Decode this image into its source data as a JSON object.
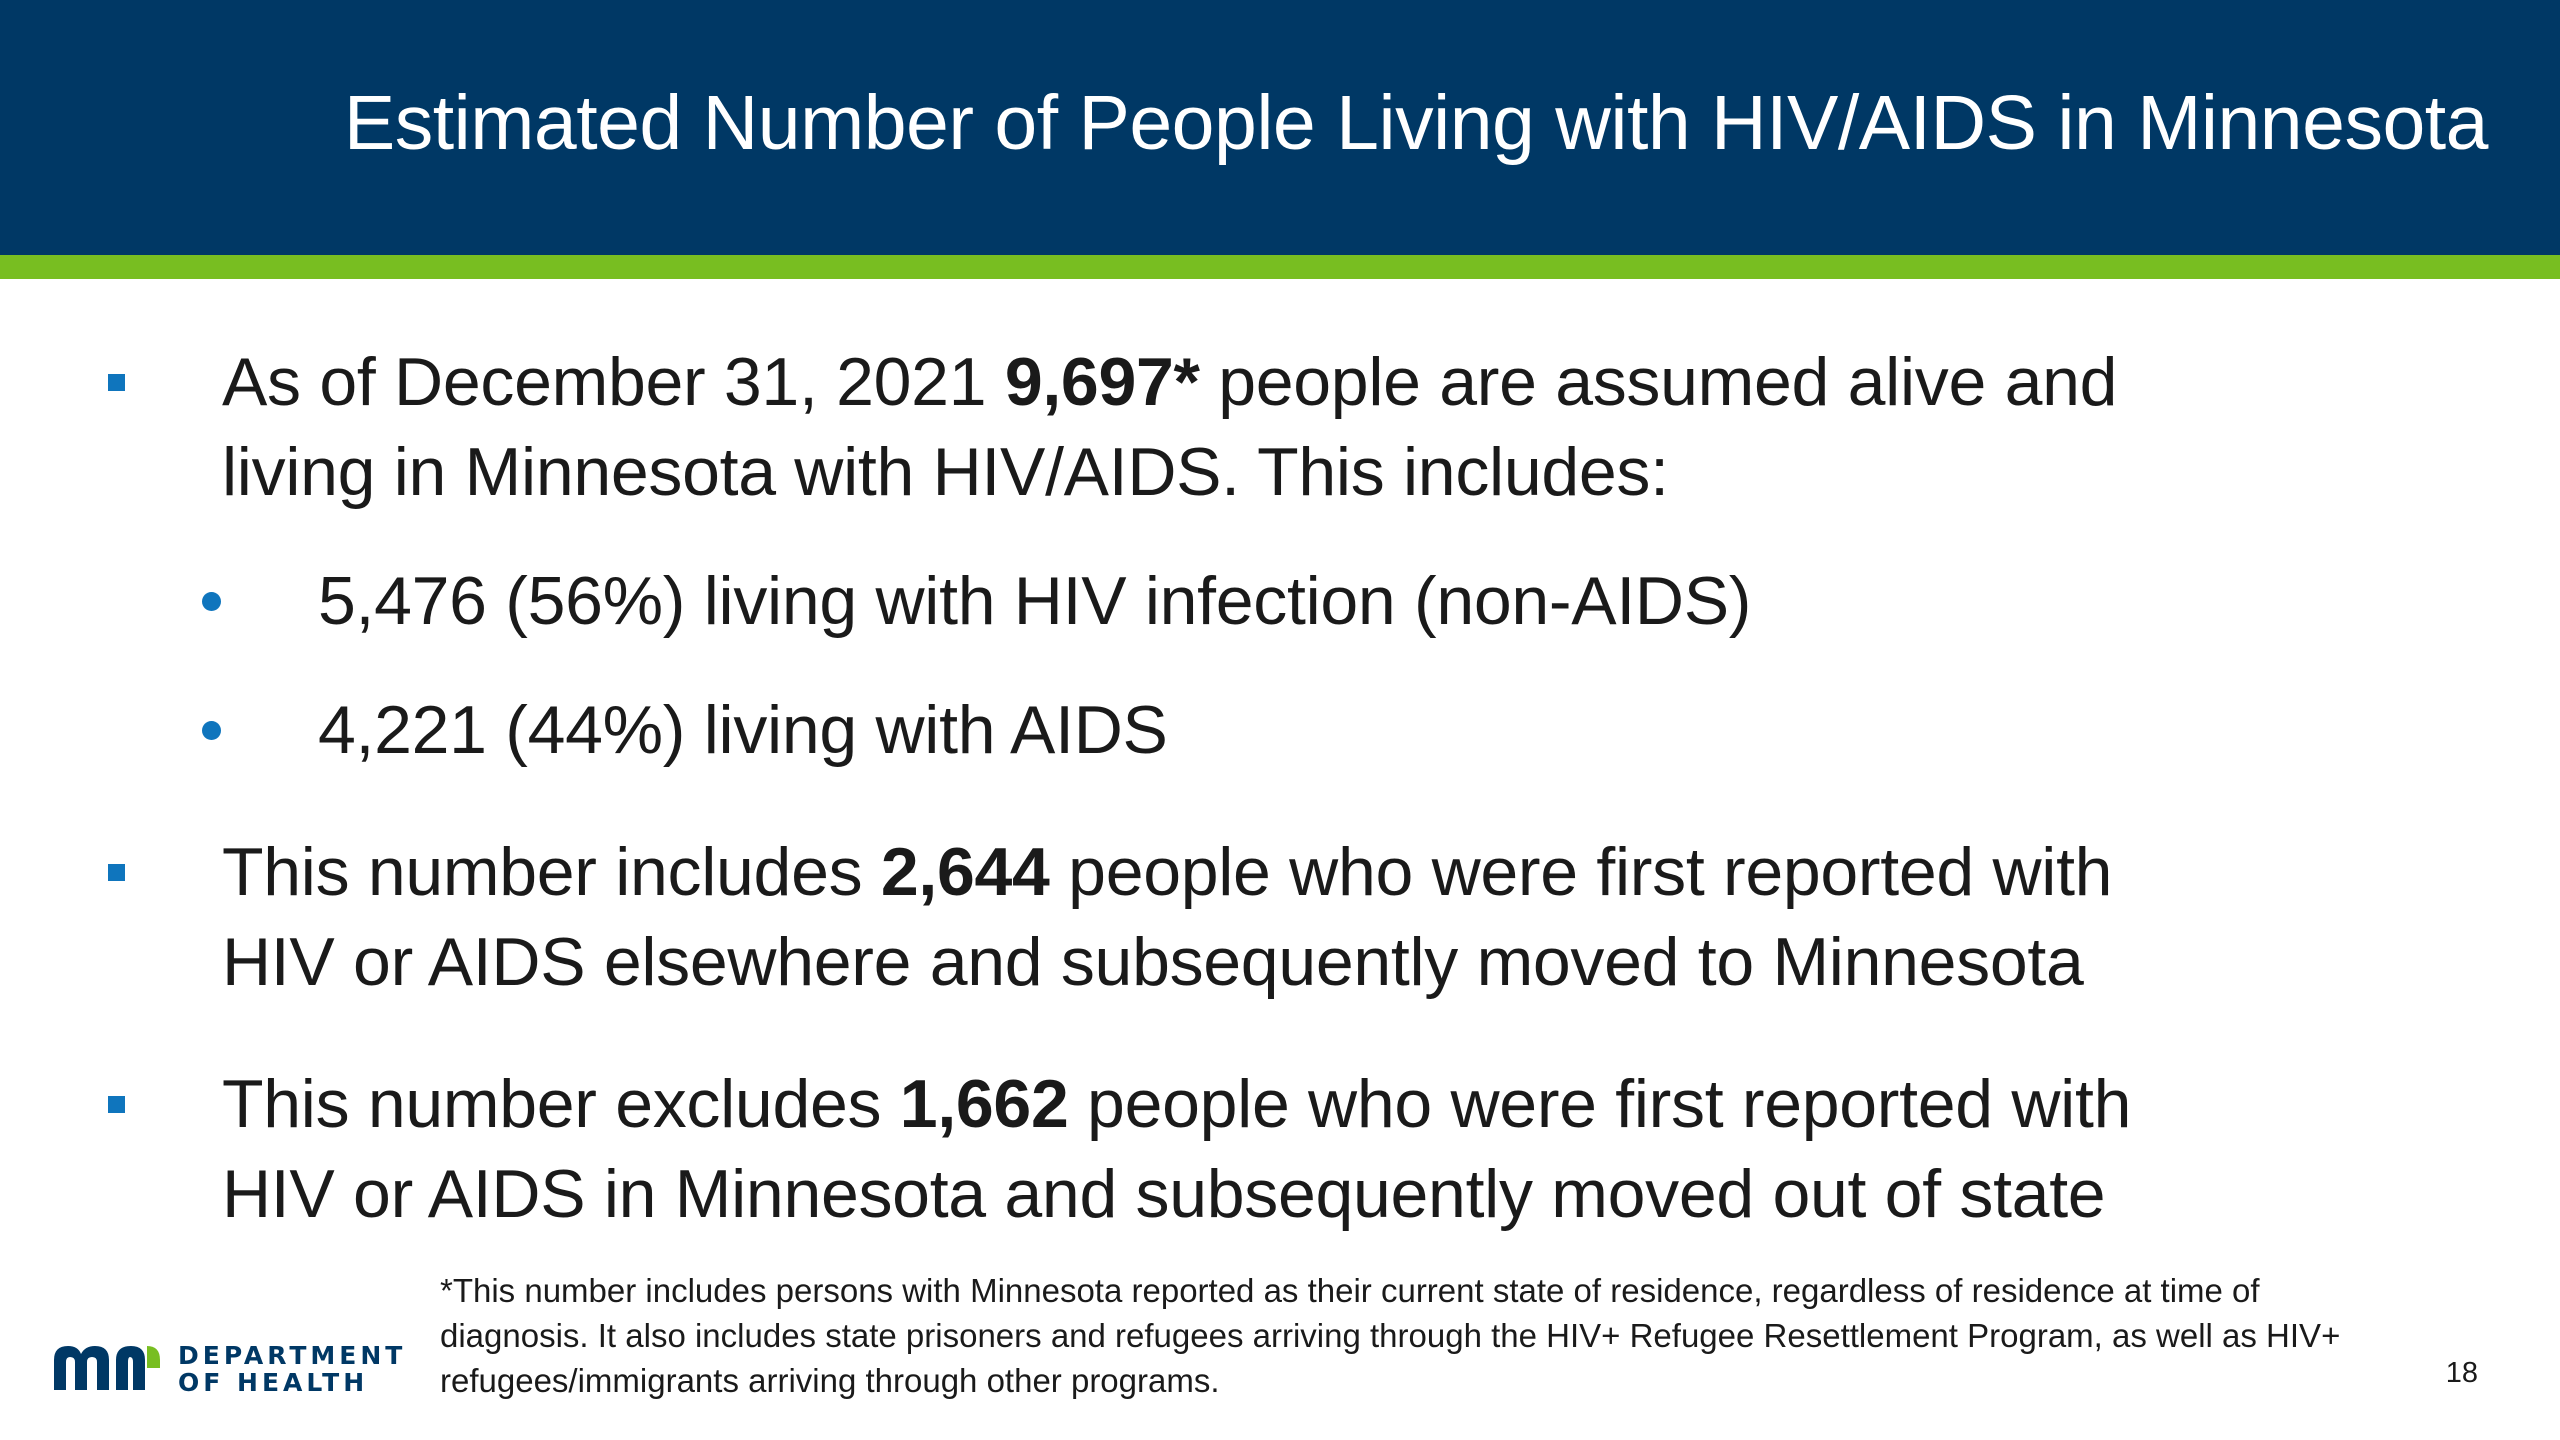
{
  "header": {
    "title": "Estimated Number of People Living with HIV/AIDS in Minnesota"
  },
  "colors": {
    "header_bg": "#003865",
    "accent_green": "#78BE21",
    "bullet_blue": "#0F75BD"
  },
  "bullets": [
    {
      "pre": "As of December 31, 2021 ",
      "bold": "9,697*",
      "post_line1": " people are assumed alive and",
      "line2": "living in Minnesota with HIV/AIDS. This includes:",
      "sub_items": [
        "5,476 (56%) living with HIV infection (non-AIDS)",
        "4,221 (44%) living with AIDS"
      ]
    },
    {
      "pre": "This number includes ",
      "bold": "2,644",
      "post_line1": " people who were first reported with",
      "line2": "HIV or AIDS elsewhere and subsequently moved to Minnesota"
    },
    {
      "pre": "This number excludes ",
      "bold": "1,662",
      "post_line1": " people who were first reported with",
      "line2": "HIV or AIDS in Minnesota and subsequently moved out of state"
    }
  ],
  "footnote": "*This number includes persons with Minnesota reported as their current state of residence, regardless of residence at time of diagnosis. It also includes state prisoners and refugees arriving through the HIV+ Refugee Resettlement Program, as well as HIV+ refugees/immigrants arriving through other programs.",
  "logo": {
    "line1": "DEPARTMENT",
    "line2": "OF HEALTH"
  },
  "page_number": "18"
}
